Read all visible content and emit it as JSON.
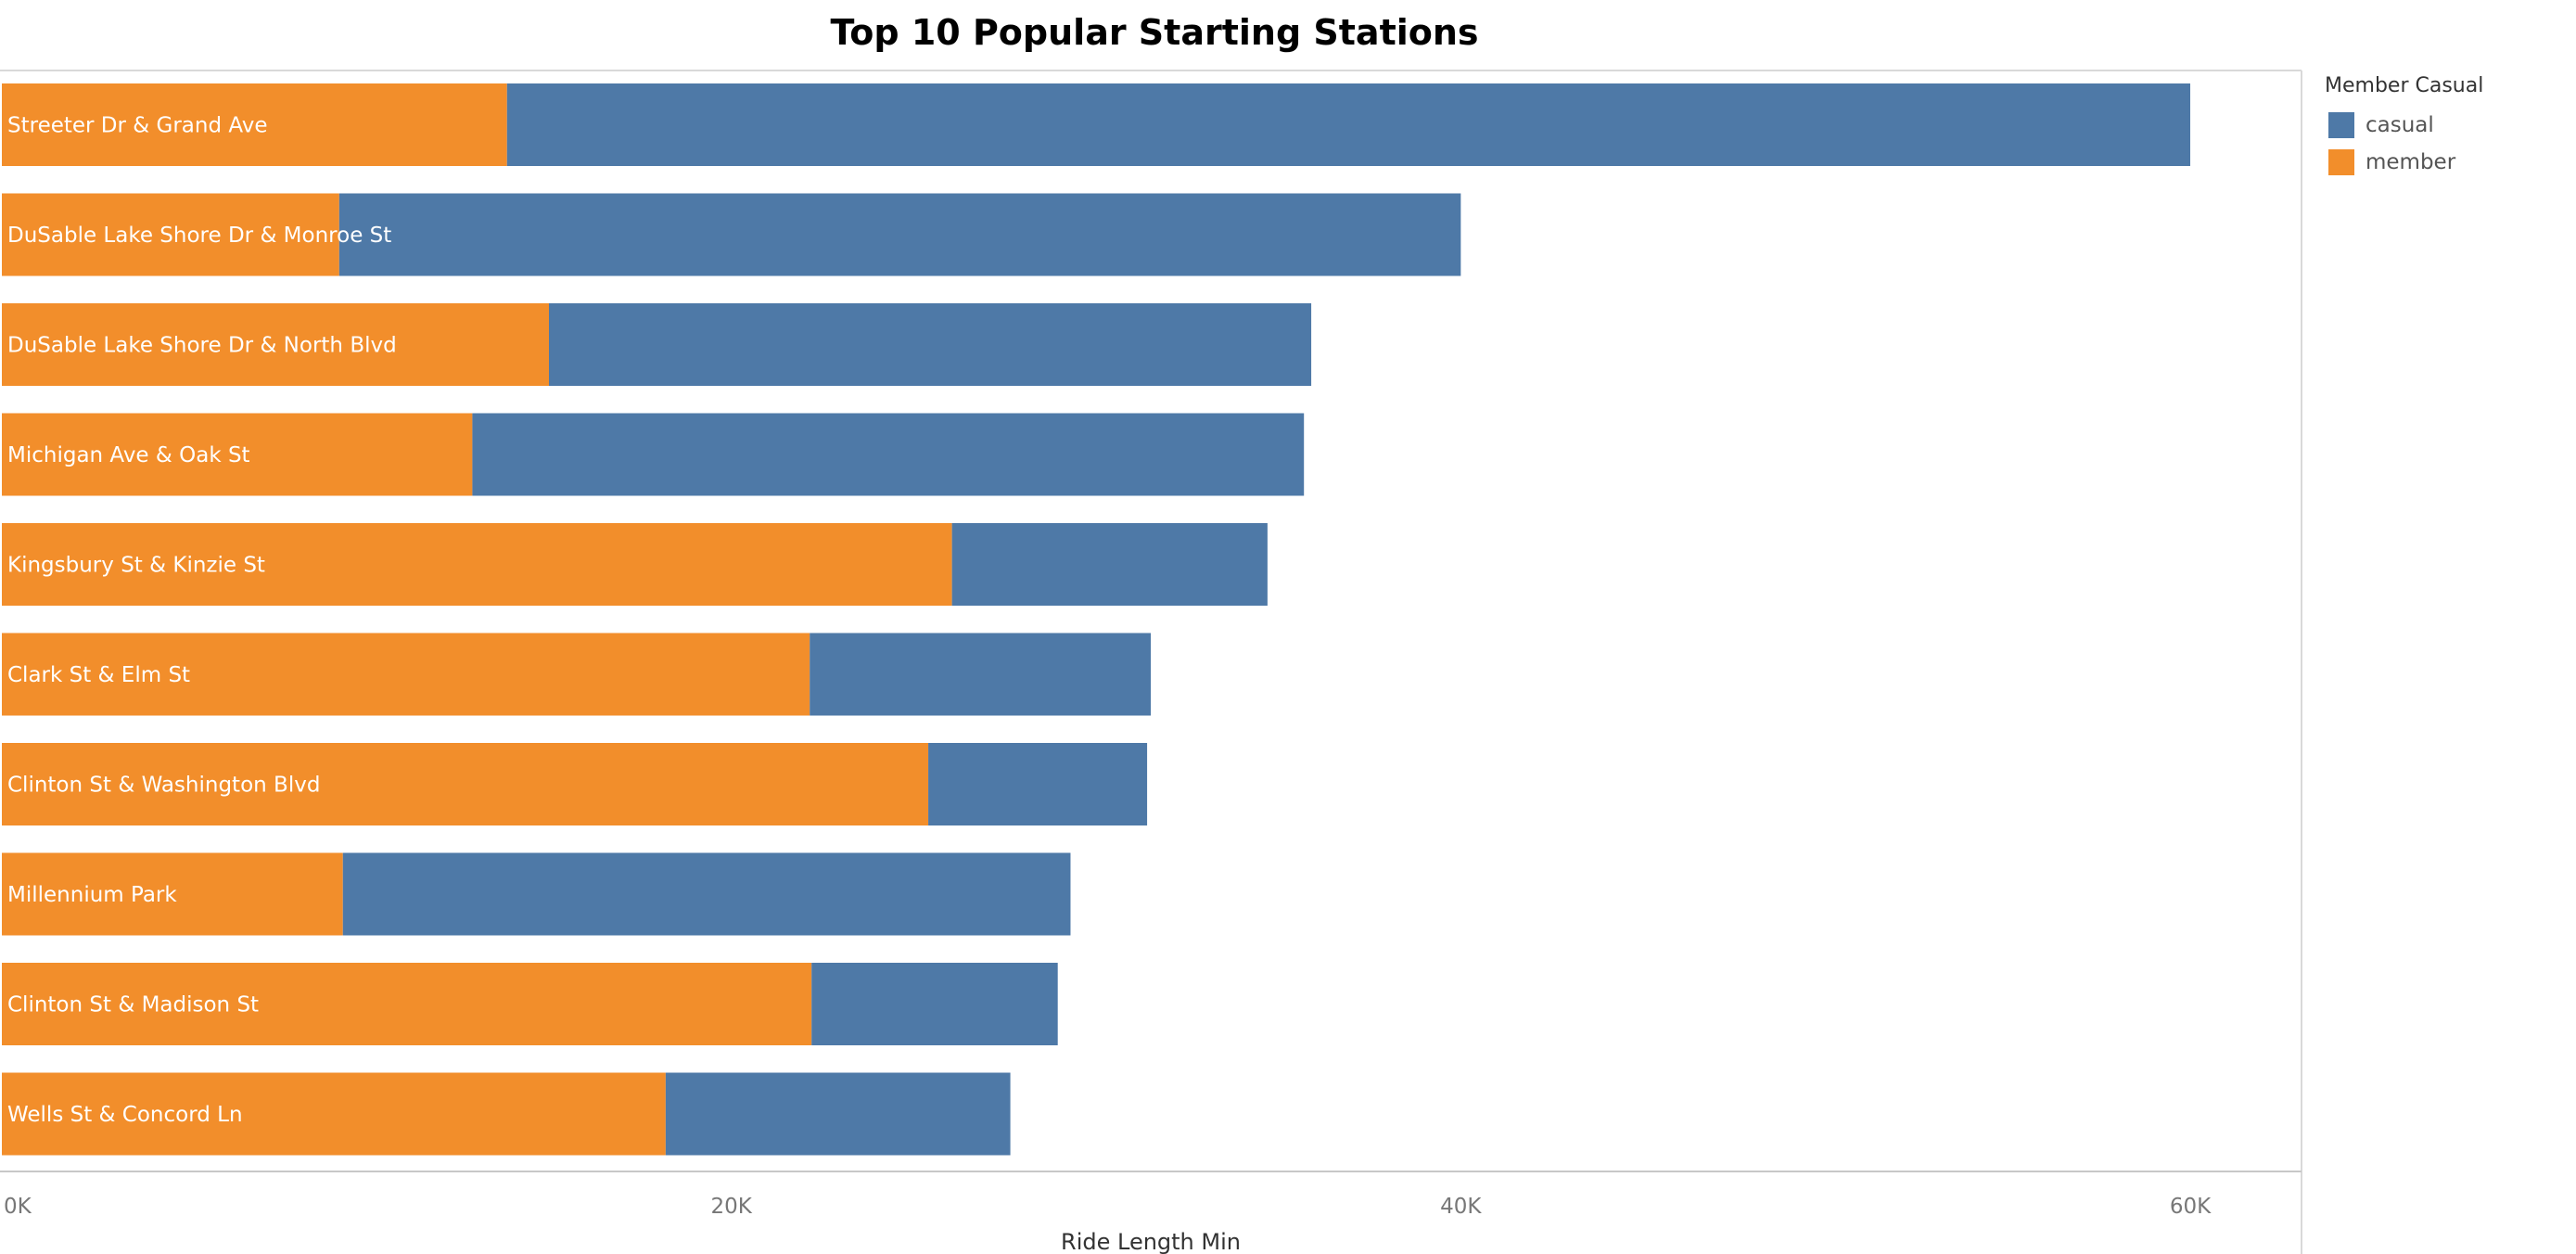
{
  "chart_data": {
    "type": "bar",
    "orientation": "horizontal",
    "stacked": true,
    "title": "Top 10 Popular Starting Stations",
    "xlabel": "Ride Length Min",
    "ylabel": "",
    "xlim": [
      0,
      62000
    ],
    "x_ticks": [
      0,
      20000,
      40000,
      60000
    ],
    "x_tick_labels": [
      "0K",
      "20K",
      "40K",
      "60K"
    ],
    "categories": [
      "Streeter Dr & Grand Ave",
      "DuSable Lake Shore Dr & Monroe St",
      "DuSable Lake Shore Dr & North Blvd",
      "Michigan Ave & Oak St",
      "Kingsbury St & Kinzie St",
      "Clark St & Elm St",
      "Clinton St & Washington Blvd",
      "Millennium Park",
      "Clinton St & Madison St",
      "Wells St & Concord Ln"
    ],
    "series": [
      {
        "name": "member",
        "color": "#F28E2B",
        "values": [
          13850,
          9250,
          15000,
          12900,
          26050,
          22150,
          25400,
          9350,
          22200,
          18200
        ]
      },
      {
        "name": "casual",
        "color": "#4E79A7",
        "values": [
          46150,
          30750,
          20900,
          22800,
          8650,
          9350,
          6000,
          19950,
          6750,
          9450
        ]
      }
    ],
    "grid": false,
    "legend": {
      "title": "Member Casual",
      "position": "right",
      "items": [
        {
          "label": "casual",
          "color": "#4E79A7"
        },
        {
          "label": "member",
          "color": "#F28E2B"
        }
      ]
    }
  }
}
